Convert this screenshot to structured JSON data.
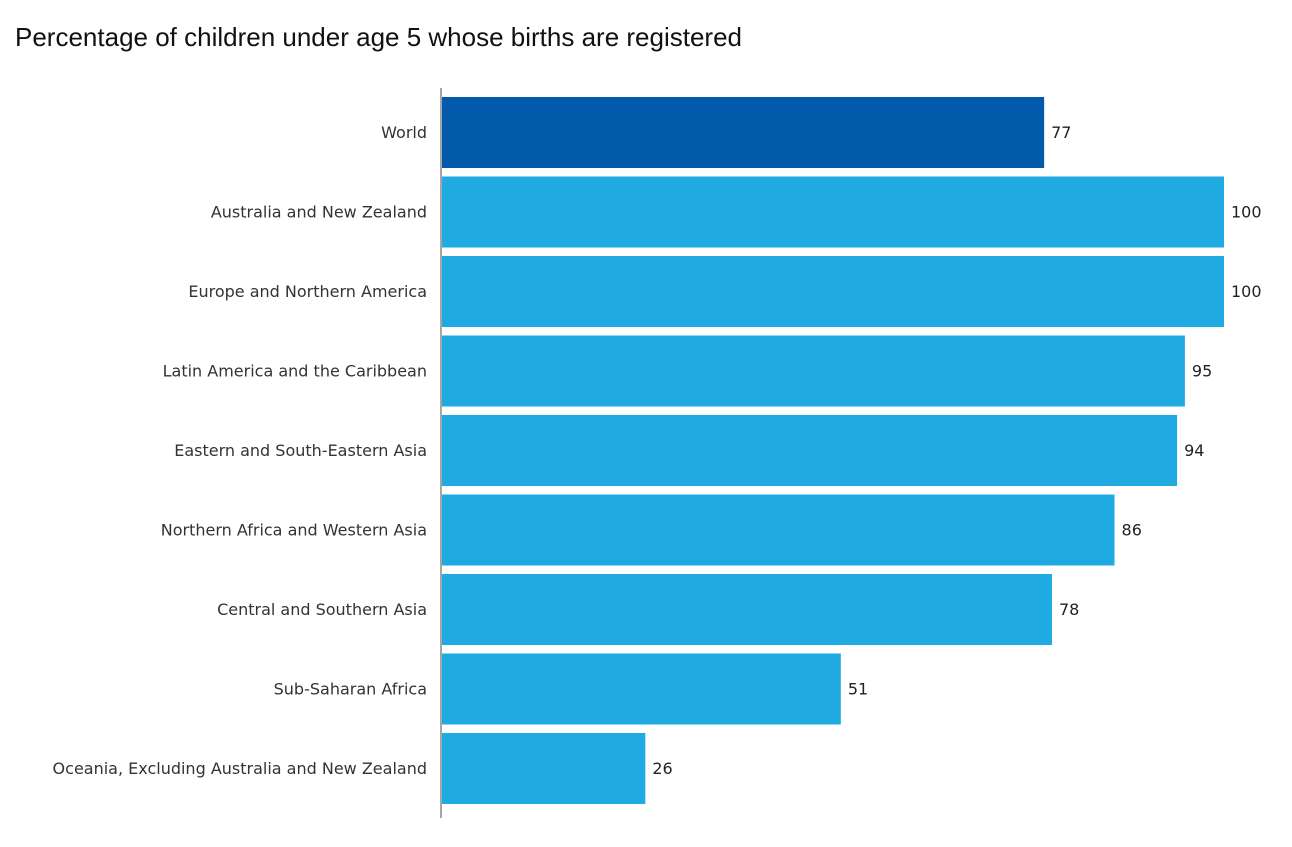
{
  "chart_data": {
    "type": "bar",
    "orientation": "horizontal",
    "title": "Percentage of children under age 5 whose births are registered",
    "xlabel": "",
    "ylabel": "",
    "xlim": [
      0,
      100
    ],
    "grid": false,
    "categories": [
      "World",
      "Australia and New Zealand",
      "Europe and Northern America",
      "Latin America and the Caribbean",
      "Eastern and South-Eastern Asia",
      "Northern Africa and Western Asia",
      "Central and Southern Asia",
      "Sub-Saharan Africa",
      "Oceania, Excluding Australia and New Zealand"
    ],
    "values": [
      77,
      100,
      100,
      95,
      94,
      86,
      78,
      51,
      26
    ],
    "colors": {
      "highlight": "#0359AA",
      "default": "#1FAAE2",
      "axis": "#888888"
    },
    "highlight_category": "World"
  }
}
